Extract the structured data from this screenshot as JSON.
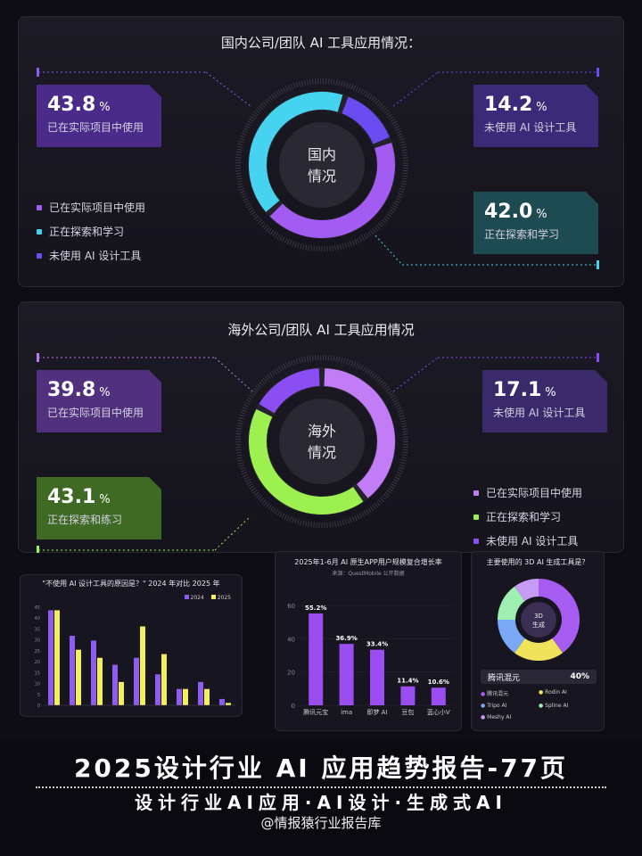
{
  "domestic": {
    "title": "国内公司/团队 AI 工具应用情况：",
    "center": [
      "国内",
      "情况"
    ],
    "cards": [
      {
        "value": "43.8",
        "unit": "%",
        "label": "已在实际项目中使用",
        "color": "#4a2b8a"
      },
      {
        "value": "14.2",
        "unit": "%",
        "label": "未使用 AI 设计工具",
        "color": "#3b2a78"
      },
      {
        "value": "42.0",
        "unit": "%",
        "label": "正在探索和学习",
        "color": "#1e4a52"
      }
    ],
    "legend": [
      {
        "label": "已在实际项目中使用",
        "color": "#a35cf2"
      },
      {
        "label": "正在探索和学习",
        "color": "#46d3f0"
      },
      {
        "label": "未使用 AI 设计工具",
        "color": "#6a4cf2"
      }
    ]
  },
  "overseas": {
    "title": "海外公司/团队 AI 工具应用情况",
    "center": [
      "海外",
      "情况"
    ],
    "cards": [
      {
        "value": "39.8",
        "unit": "%",
        "label": "已在实际项目中使用",
        "color": "#51317e"
      },
      {
        "value": "17.1",
        "unit": "%",
        "label": "未使用 AI 设计工具",
        "color": "#3a2a6c"
      },
      {
        "value": "43.1",
        "unit": "%",
        "label": "正在探索和练习",
        "color": "#3e6a24"
      }
    ],
    "legend": [
      {
        "label": "已在实际项目中使用",
        "color": "#c27cf5"
      },
      {
        "label": "正在探索和学习",
        "color": "#9cf050"
      },
      {
        "label": "未使用 AI 设计工具",
        "color": "#8a4ef2"
      }
    ]
  },
  "mini_bar": {
    "title": "\"不使用 AI 设计工具的原因是？\" 2024 年对比 2025 年",
    "legend": [
      "2024",
      "2025"
    ]
  },
  "mini_app": {
    "title": "2025年1-6月 AI 原生APP用户规模复合增长率",
    "sub": "来源：QuestMobile 公开数据"
  },
  "mini_3d": {
    "title": "主要使用的 3D AI 生成工具是？",
    "center": [
      "3D",
      "生成"
    ],
    "highlight": {
      "name": "腾讯混元",
      "value": "40%"
    },
    "legend": [
      "腾讯混元",
      "Rodin AI",
      "Tripo AI",
      "Spline AI",
      "Meshy AI"
    ]
  },
  "banner": {
    "title": "2025设计行业 AI 应用趋势报告-77页",
    "sub": "设计行业AI应用·AI设计·生成式AI",
    "author": "@情报猿行业报告库"
  },
  "chart_data": [
    {
      "type": "pie",
      "title": "国内公司/团队 AI 工具应用情况：",
      "categories": [
        "已在实际项目中使用",
        "正在探索和学习",
        "未使用 AI 设计工具"
      ],
      "values": [
        43.8,
        42.0,
        14.2
      ],
      "colors": [
        "#a35cf2",
        "#46d3f0",
        "#6a4cf2"
      ]
    },
    {
      "type": "pie",
      "title": "海外公司/团队 AI 工具应用情况",
      "categories": [
        "已在实际项目中使用",
        "正在探索和学习",
        "未使用 AI 设计工具"
      ],
      "values": [
        39.8,
        43.1,
        17.1
      ],
      "colors": [
        "#c27cf5",
        "#9cf050",
        "#8a4ef2"
      ]
    },
    {
      "type": "bar",
      "title": "\"不使用 AI 设计工具的原因是？\" 2024 年对比 2025 年",
      "ylim": [
        0,
        45
      ],
      "yticks": [
        0,
        5,
        10,
        15,
        20,
        25,
        30,
        35,
        40,
        45
      ],
      "series": [
        {
          "name": "2024",
          "color": "#8f5cf0",
          "values": [
            43.6,
            31.9,
            29.7,
            18.6,
            21.8,
            14.2,
            7.5,
            10.7,
            2.9
          ]
        },
        {
          "name": "2025",
          "color": "#f2ef5a",
          "values": [
            43.6,
            25.5,
            21.8,
            10.7,
            36.2,
            23.5,
            7.5,
            7.5,
            1.1
          ]
        }
      ]
    },
    {
      "type": "bar",
      "title": "2025年1-6月 AI 原生APP用户规模复合增长率",
      "categories": [
        "腾讯元宝",
        "ima",
        "即梦 AI",
        "豆包",
        "蓝心小V"
      ],
      "values": [
        55.2,
        36.9,
        33.4,
        11.4,
        10.6
      ],
      "value_labels": [
        "55.2%",
        "36.9%",
        "33.4%",
        "11.4%",
        "10.6%"
      ],
      "ylim": [
        0,
        60
      ],
      "yticks": [
        0,
        20,
        40,
        60
      ]
    },
    {
      "type": "pie",
      "title": "主要使用的 3D AI 生成工具是？",
      "categories": [
        "腾讯混元",
        "Rodin AI",
        "Tripo AI",
        "Spline AI",
        "Meshy AI"
      ],
      "values": [
        40,
        20,
        15,
        15,
        10
      ],
      "colors": [
        "#a65cf0",
        "#f0e25a",
        "#7aa8f5",
        "#9ff0b0",
        "#c79cf7"
      ]
    }
  ]
}
